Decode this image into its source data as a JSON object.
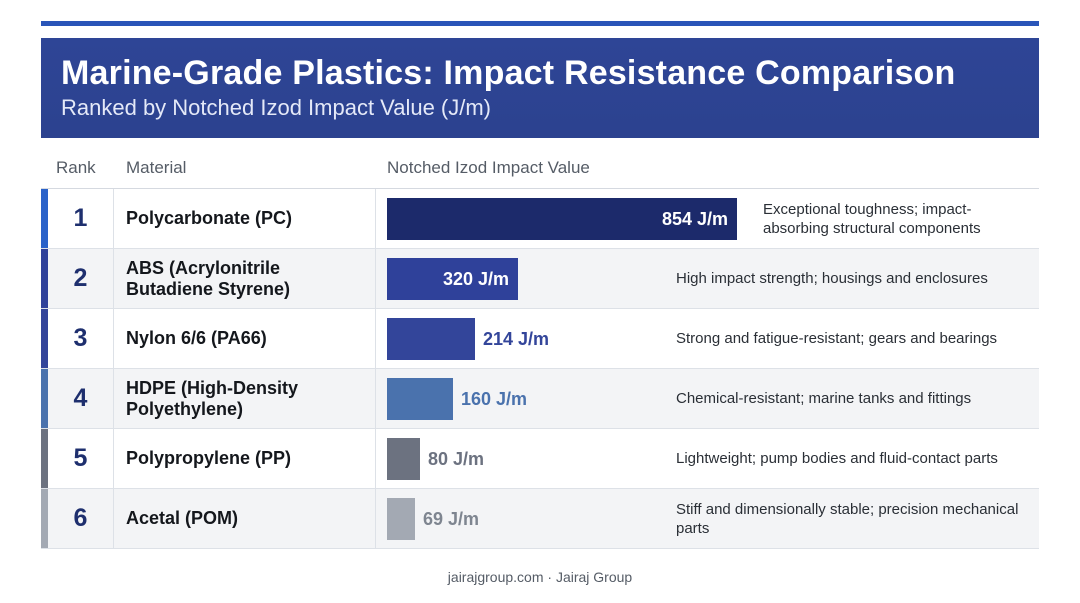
{
  "header": {
    "title": "Marine-Grade Plastics: Impact Resistance Comparison",
    "subtitle": "Ranked by Notched Izod Impact Value (J/m)"
  },
  "columns": {
    "rank": "Rank",
    "material": "Material",
    "value": "Notched Izod Impact Value"
  },
  "chart_data": {
    "type": "bar",
    "orientation": "horizontal",
    "title": "Marine-Grade Plastics: Impact Resistance Comparison",
    "subtitle": "Ranked by Notched Izod Impact Value (J/m)",
    "unit": "J/m",
    "xlim": [
      0,
      854
    ],
    "grid": false,
    "rows": [
      {
        "rank": "1",
        "material": "Polycarbonate (PC)",
        "value": 854,
        "label": "854 J/m",
        "note": "Exceptional toughness; impact-absorbing structural components",
        "color": "#1c2a6b",
        "accent": "#2a62c9"
      },
      {
        "rank": "2",
        "material": "ABS (Acrylonitrile Butadiene Styrene)",
        "value": 320,
        "label": "320 J/m",
        "note": "High impact strength; housings and enclosures",
        "color": "#2f419a",
        "accent": "#2f419a"
      },
      {
        "rank": "3",
        "material": "Nylon 6/6 (PA66)",
        "value": 214,
        "label": "214 J/m",
        "note": "Strong and fatigue-resistant; gears and bearings",
        "color": "#33459a",
        "accent": "#33459a"
      },
      {
        "rank": "4",
        "material": "HDPE (High-Density Polyethylene)",
        "value": 160,
        "label": "160 J/m",
        "note": "Chemical-resistant; marine tanks and fittings",
        "color": "#4a72ad",
        "accent": "#4a72ad"
      },
      {
        "rank": "5",
        "material": "Polypropylene (PP)",
        "value": 80,
        "label": "80 J/m",
        "note": "Lightweight; pump bodies and fluid-contact parts",
        "color": "#6c7280",
        "accent": "#6c7280"
      },
      {
        "rank": "6",
        "material": "Acetal (POM)",
        "value": 69,
        "label": "69 J/m",
        "note": "Stiff and dimensionally stable; precision mechanical parts",
        "color": "#a3a9b3",
        "accent": "#a3a9b3"
      }
    ]
  },
  "footer": {
    "text": "jairajgroup.com · Jairaj Group"
  }
}
